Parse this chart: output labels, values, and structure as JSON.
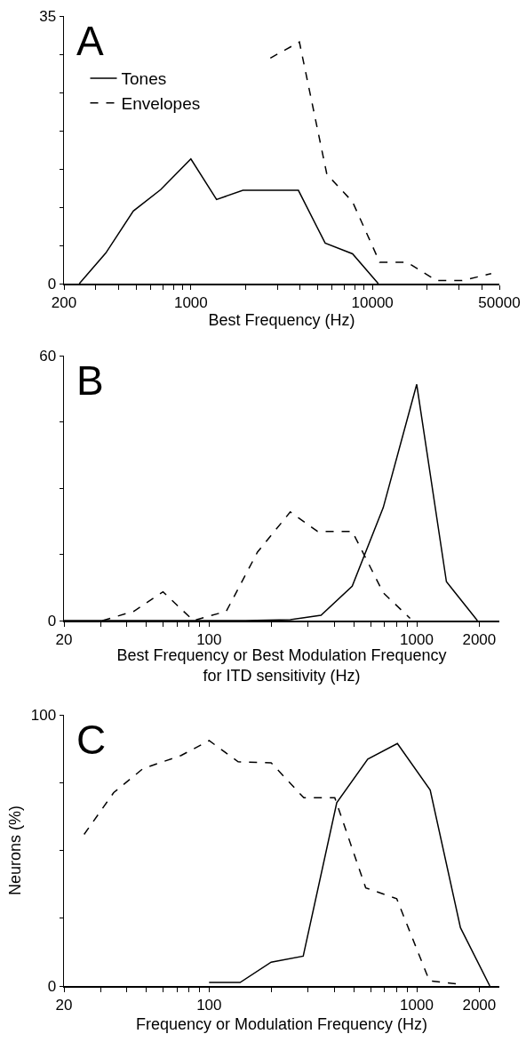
{
  "chart_data": [
    {
      "type": "line",
      "annotations": [
        "A"
      ],
      "xlabel": "Best Frequency (Hz)",
      "log": "x",
      "xlim": [
        200,
        50000
      ],
      "xticks": [
        200,
        {
          "value": 300,
          "label": null
        },
        {
          "value": 400,
          "label": null
        },
        {
          "value": 500,
          "label": null
        },
        {
          "value": 600,
          "label": null
        },
        {
          "value": 700,
          "label": null
        },
        {
          "value": 800,
          "label": null
        },
        {
          "value": 900,
          "label": null
        },
        1000,
        {
          "value": 2000,
          "label": null
        },
        {
          "value": 3000,
          "label": null
        },
        {
          "value": 4000,
          "label": null
        },
        {
          "value": 5000,
          "label": null
        },
        {
          "value": 6000,
          "label": null
        },
        {
          "value": 7000,
          "label": null
        },
        {
          "value": 8000,
          "label": null
        },
        {
          "value": 9000,
          "label": null
        },
        10000,
        {
          "value": 20000,
          "label": null
        },
        {
          "value": 30000,
          "label": null
        },
        {
          "value": 40000,
          "label": null
        },
        50000
      ],
      "ylim": [
        0,
        35
      ],
      "yticks": [
        0,
        {
          "value": 5,
          "label": null
        },
        {
          "value": 10,
          "label": null
        },
        {
          "value": 15,
          "label": null
        },
        {
          "value": 20,
          "label": null
        },
        {
          "value": 25,
          "label": null
        },
        {
          "value": 30,
          "label": null
        },
        35
      ],
      "legend": "top left",
      "series": [
        {
          "name": "Tones",
          "color": "#000000",
          "line_style": "solid",
          "x": [
            243,
            340,
            482,
            682,
            1000,
            1385,
            1935,
            3910,
            5490,
            7770,
            10770
          ],
          "values": [
            0,
            4.0,
            9.5,
            12.3,
            16.3,
            11.0,
            12.2,
            12.2,
            5.3,
            3.9,
            0
          ]
        },
        {
          "name": "Envelopes",
          "color": "#000000",
          "line_style": "dashed",
          "x": [
            2740,
            3960,
            5610,
            7770,
            10960,
            15500,
            22500,
            31200,
            45100
          ],
          "values": [
            29.5,
            31.6,
            14.3,
            10.7,
            2.8,
            2.8,
            0.4,
            0.4,
            1.3
          ]
        }
      ]
    },
    {
      "type": "line",
      "annotations": [
        "B"
      ],
      "xlabel": "Best Frequency or Best Modulation Frequency for ITD sensitivity (Hz)",
      "log": "x",
      "xlim": [
        20,
        2500
      ],
      "xticks": [
        20,
        {
          "value": 30,
          "label": null
        },
        {
          "value": 40,
          "label": null
        },
        {
          "value": 50,
          "label": null
        },
        {
          "value": 60,
          "label": null
        },
        {
          "value": 70,
          "label": null
        },
        {
          "value": 80,
          "label": null
        },
        {
          "value": 90,
          "label": null
        },
        100,
        {
          "value": 200,
          "label": null
        },
        {
          "value": 300,
          "label": null
        },
        {
          "value": 400,
          "label": null
        },
        {
          "value": 500,
          "label": null
        },
        {
          "value": 600,
          "label": null
        },
        {
          "value": 700,
          "label": null
        },
        {
          "value": 800,
          "label": null
        },
        {
          "value": 900,
          "label": null
        },
        1000,
        2000
      ],
      "ylim": [
        0,
        60
      ],
      "yticks": [
        0,
        {
          "value": 15,
          "label": null
        },
        {
          "value": 30,
          "label": null
        },
        {
          "value": 45,
          "label": null
        },
        60
      ],
      "series": [
        {
          "color": "#000000",
          "line_style": "solid",
          "x": [
            20,
            150,
            246,
            346,
            489,
            690,
            1000,
            1390,
            1960
          ],
          "values": [
            0,
            0,
            0.2,
            1.2,
            7.8,
            25.6,
            53.5,
            8.8,
            0
          ]
        },
        {
          "color": "#000000",
          "line_style": "dashed",
          "x": [
            30.7,
            43.4,
            60,
            84,
            121,
            171,
            246,
            333,
            489,
            690,
            929
          ],
          "values": [
            0,
            2.1,
            6.5,
            0,
            2.1,
            15.5,
            24.6,
            20.2,
            20.2,
            6.3,
            0.5
          ]
        }
      ]
    },
    {
      "type": "line",
      "annotations": [
        "C"
      ],
      "xlabel": "Frequency or Modulation Frequency (Hz)",
      "ylabel": "Neurons (%)",
      "log": "x",
      "xlim": [
        20,
        2500
      ],
      "xticks": [
        20,
        {
          "value": 30,
          "label": null
        },
        {
          "value": 40,
          "label": null
        },
        {
          "value": 50,
          "label": null
        },
        {
          "value": 60,
          "label": null
        },
        {
          "value": 70,
          "label": null
        },
        {
          "value": 80,
          "label": null
        },
        {
          "value": 90,
          "label": null
        },
        100,
        {
          "value": 200,
          "label": null
        },
        {
          "value": 300,
          "label": null
        },
        {
          "value": 400,
          "label": null
        },
        {
          "value": 500,
          "label": null
        },
        {
          "value": 600,
          "label": null
        },
        {
          "value": 700,
          "label": null
        },
        {
          "value": 800,
          "label": null
        },
        {
          "value": 900,
          "label": null
        },
        1000,
        2000
      ],
      "ylim": [
        0,
        100
      ],
      "yticks": [
        0,
        {
          "value": 25,
          "label": null
        },
        {
          "value": 50,
          "label": null
        },
        {
          "value": 75,
          "label": null
        },
        100
      ],
      "series": [
        {
          "color": "#000000",
          "line_style": "solid",
          "x": [
            100,
            141,
            199,
            284,
            412,
            581,
            807,
            1161,
            1624,
            2250
          ],
          "values": [
            1.3,
            1.3,
            8.8,
            11,
            67.6,
            83.7,
            89.4,
            72.3,
            21.5,
            0
          ]
        },
        {
          "color": "#000000",
          "line_style": "dashed",
          "x": [
            25,
            34.7,
            48.1,
            73.3,
            100,
            138,
            199,
            286,
            403,
            568,
            801,
            1151,
            1624
          ],
          "values": [
            55.9,
            71.3,
            80.2,
            85,
            90.5,
            82.7,
            82.3,
            69.4,
            69.4,
            36.2,
            32.2,
            1.9,
            0.6
          ]
        }
      ]
    }
  ]
}
